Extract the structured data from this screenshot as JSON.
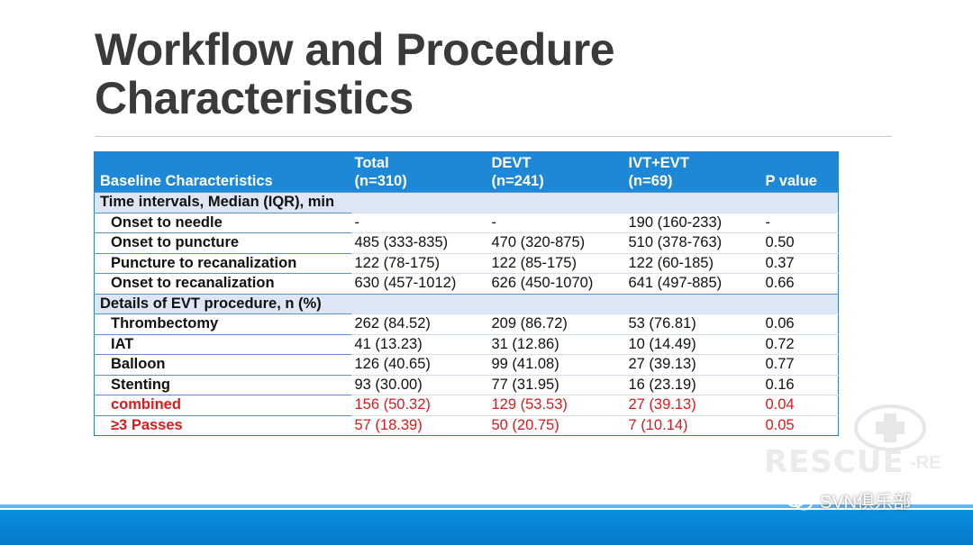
{
  "slide": {
    "title_line1": "Workflow and Procedure",
    "title_line2": "Characteristics"
  },
  "table": {
    "headers": {
      "col1": "Baseline Characteristics",
      "col2_line1": "Total",
      "col2_line2": "(n=310)",
      "col3_line1": "DEVT",
      "col3_line2": "(n=241)",
      "col4_line1": "IVT+EVT",
      "col4_line2": "(n=69)",
      "col5": "P value"
    },
    "section1": "Time intervals, Median (IQR), min",
    "rows1": [
      {
        "label": "Onset to needle",
        "total": "-",
        "devt": "-",
        "ivt": "190 (160-233)",
        "p": "-"
      },
      {
        "label": "Onset to puncture",
        "total": "485 (333-835)",
        "devt": "470 (320-875)",
        "ivt": "510 (378-763)",
        "p": "0.50"
      },
      {
        "label": "Puncture to recanalization",
        "total": "122 (78-175)",
        "devt": "122 (85-175)",
        "ivt": "122 (60-185)",
        "p": "0.37"
      },
      {
        "label": "Onset to recanalization",
        "total": "630 (457-1012)",
        "devt": "626 (450-1070)",
        "ivt": "641 (497-885)",
        "p": "0.66"
      }
    ],
    "section2": "Details of EVT procedure, n (%)",
    "rows2": [
      {
        "label": "Thrombectomy",
        "total": "262 (84.52)",
        "devt": "209 (86.72)",
        "ivt": "53 (76.81)",
        "p": "0.06"
      },
      {
        "label": "IAT",
        "total": "41 (13.23)",
        "devt": "31 (12.86)",
        "ivt": "10 (14.49)",
        "p": "0.72"
      },
      {
        "label": "Balloon",
        "total": "126 (40.65)",
        "devt": "99 (41.08)",
        "ivt": "27 (39.13)",
        "p": "0.77"
      },
      {
        "label": "Stenting",
        "total": "93 (30.00)",
        "devt": "77 (31.95)",
        "ivt": "16 (23.19)",
        "p": "0.16"
      },
      {
        "label": "combined",
        "total": "156 (50.32)",
        "devt": "129 (53.53)",
        "ivt": "27 (39.13)",
        "p": "0.04"
      },
      {
        "label": "≥3 Passes",
        "total": "57 (18.39)",
        "devt": "50 (20.75)",
        "ivt": "7 (10.14)",
        "p": "0.05"
      }
    ]
  },
  "watermark": {
    "text": "RESCUE",
    "suffix": "-RE"
  },
  "brand": {
    "label": "SVN俱乐部",
    "icon": "wechat-icon"
  },
  "colors": {
    "header_bg": "#1e88d8",
    "section_bg": "#dde6f5",
    "highlight_red": "#e0181d",
    "footer_bar": "#0a8fe0"
  }
}
